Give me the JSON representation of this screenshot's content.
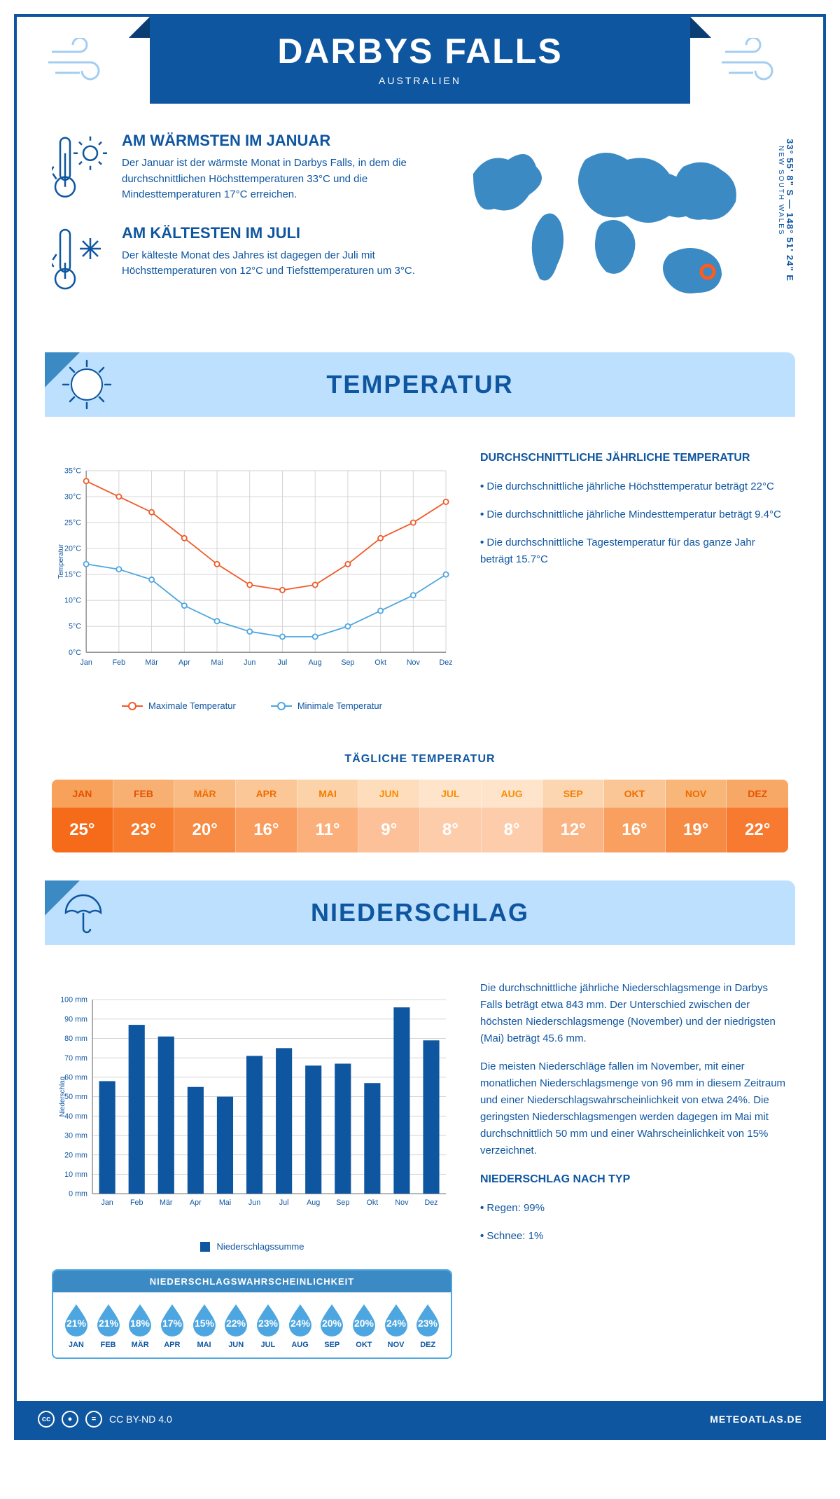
{
  "header": {
    "title": "DARBYS FALLS",
    "subtitle": "AUSTRALIEN"
  },
  "location": {
    "lat": "33° 55' 8\" S",
    "lon": "148° 51' 24\" E",
    "region": "NEW SOUTH WALES"
  },
  "facts": {
    "warm": {
      "title": "AM WÄRMSTEN IM JANUAR",
      "text": "Der Januar ist der wärmste Monat in Darbys Falls, in dem die durchschnittlichen Höchsttemperaturen 33°C und die Mindesttemperaturen 17°C erreichen."
    },
    "cold": {
      "title": "AM KÄLTESTEN IM JULI",
      "text": "Der kälteste Monat des Jahres ist dagegen der Juli mit Höchsttemperaturen von 12°C und Tiefsttemperaturen um 3°C."
    }
  },
  "sections": {
    "temperature": "TEMPERATUR",
    "precipitation": "NIEDERSCHLAG"
  },
  "months": [
    "Jan",
    "Feb",
    "Mär",
    "Apr",
    "Mai",
    "Jun",
    "Jul",
    "Aug",
    "Sep",
    "Okt",
    "Nov",
    "Dez"
  ],
  "months_upper": [
    "JAN",
    "FEB",
    "MÄR",
    "APR",
    "MAI",
    "JUN",
    "JUL",
    "AUG",
    "SEP",
    "OKT",
    "NOV",
    "DEZ"
  ],
  "tempChart": {
    "type": "line",
    "y_axis_title": "Temperatur",
    "ylim": [
      0,
      35
    ],
    "ytick_step": 5,
    "ytick_labels": [
      "0°C",
      "5°C",
      "10°C",
      "15°C",
      "20°C",
      "25°C",
      "30°C",
      "35°C"
    ],
    "x_labels": [
      "Jan",
      "Feb",
      "Mär",
      "Apr",
      "Mai",
      "Jun",
      "Jul",
      "Aug",
      "Sep",
      "Okt",
      "Nov",
      "Dez"
    ],
    "series": {
      "max": {
        "label": "Maximale Temperatur",
        "color": "#ef5a28",
        "values": [
          33,
          30,
          27,
          22,
          17,
          13,
          12,
          13,
          17,
          22,
          25,
          29
        ]
      },
      "min": {
        "label": "Minimale Temperatur",
        "color": "#4da6e0",
        "values": [
          17,
          16,
          14,
          9,
          6,
          4,
          3,
          3,
          5,
          8,
          11,
          15
        ]
      }
    },
    "grid_color": "#d0d0d0",
    "background_color": "#ffffff"
  },
  "tempText": {
    "heading": "DURCHSCHNITTLICHE JÄHRLICHE TEMPERATUR",
    "items": [
      "Die durchschnittliche jährliche Höchsttemperatur beträgt 22°C",
      "Die durchschnittliche jährliche Mindesttemperatur beträgt 9.4°C",
      "Die durchschnittliche Tagestemperatur für das ganze Jahr beträgt 15.7°C"
    ]
  },
  "dailyTemp": {
    "title": "TÄGLICHE TEMPERATUR",
    "values": [
      "25°",
      "23°",
      "20°",
      "16°",
      "11°",
      "9°",
      "8°",
      "8°",
      "12°",
      "16°",
      "19°",
      "22°"
    ],
    "month_bg": [
      "#f7a15a",
      "#f8b072",
      "#f9bc85",
      "#fbc797",
      "#fcd2a9",
      "#fdddbc",
      "#fee4cb",
      "#fee4cb",
      "#fcd6b0",
      "#fac695",
      "#f9b679",
      "#f8a866"
    ],
    "month_fg": [
      "#e65100",
      "#e65100",
      "#ef6c00",
      "#ef6c00",
      "#f57c00",
      "#fb8c00",
      "#fb8c00",
      "#fb8c00",
      "#f57c00",
      "#ef6c00",
      "#ef6c00",
      "#e65100"
    ],
    "val_bg": [
      "#f56b1a",
      "#f67b2d",
      "#f78b44",
      "#f99c5e",
      "#fbb07c",
      "#fcc199",
      "#fdccab",
      "#fdccab",
      "#fbb584",
      "#f9a061",
      "#f88b44",
      "#f77a30"
    ]
  },
  "precipChart": {
    "type": "bar",
    "y_axis_title": "Niederschlag",
    "ylim": [
      0,
      100
    ],
    "ytick_step": 10,
    "ytick_labels": [
      "0 mm",
      "10 mm",
      "20 mm",
      "30 mm",
      "40 mm",
      "50 mm",
      "60 mm",
      "70 mm",
      "80 mm",
      "90 mm",
      "100 mm"
    ],
    "x_labels": [
      "Jan",
      "Feb",
      "Mär",
      "Apr",
      "Mai",
      "Jun",
      "Jul",
      "Aug",
      "Sep",
      "Okt",
      "Nov",
      "Dez"
    ],
    "values": [
      58,
      87,
      81,
      55,
      50,
      71,
      75,
      66,
      67,
      57,
      96,
      79
    ],
    "bar_color": "#0f56a0",
    "grid_color": "#d0d0d0",
    "legend_label": "Niederschlagssumme"
  },
  "precipText": {
    "p1": "Die durchschnittliche jährliche Niederschlagsmenge in Darbys Falls beträgt etwa 843 mm. Der Unterschied zwischen der höchsten Niederschlagsmenge (November) und der niedrigsten (Mai) beträgt 45.6 mm.",
    "p2": "Die meisten Niederschläge fallen im November, mit einer monatlichen Niederschlagsmenge von 96 mm in diesem Zeitraum und einer Niederschlagswahrscheinlichkeit von etwa 24%. Die geringsten Niederschlagsmengen werden dagegen im Mai mit durchschnittlich 50 mm und einer Wahrscheinlichkeit von 15% verzeichnet.",
    "type_heading": "NIEDERSCHLAG NACH TYP",
    "type_items": [
      "Regen: 99%",
      "Schnee: 1%"
    ]
  },
  "precipProb": {
    "title": "NIEDERSCHLAGSWAHRSCHEINLICHKEIT",
    "values": [
      "21%",
      "21%",
      "18%",
      "17%",
      "15%",
      "22%",
      "23%",
      "24%",
      "20%",
      "20%",
      "24%",
      "23%"
    ]
  },
  "footer": {
    "license": "CC BY-ND 4.0",
    "brand": "METEOATLAS.DE"
  }
}
